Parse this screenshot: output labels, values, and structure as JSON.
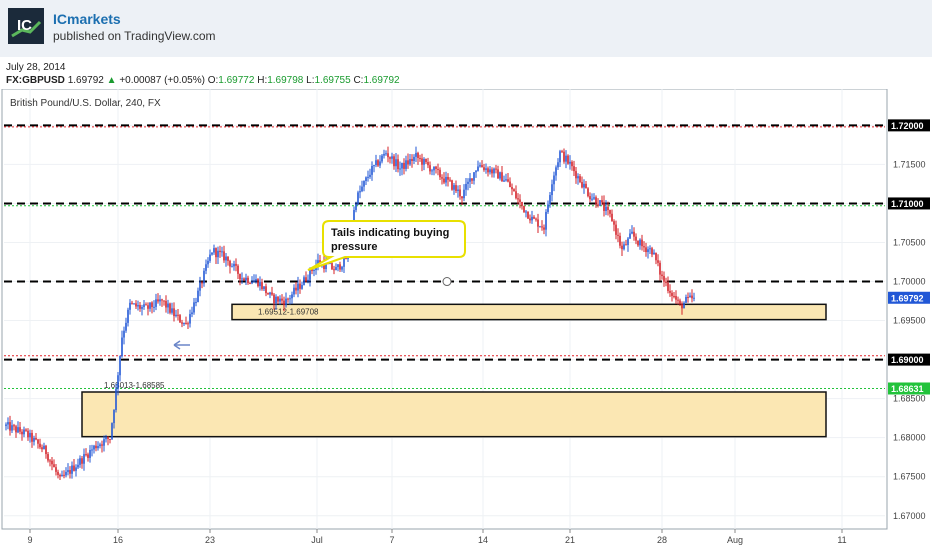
{
  "header": {
    "author": "ICmarkets",
    "published": "published on TradingView.com",
    "logo_text": "IC"
  },
  "date": "July 28, 2014",
  "ticker": {
    "symbol": "FX:GBPUSD",
    "last": "1.69792",
    "change": "+0.00087 (+0.05%)",
    "open_label": "O:",
    "open": "1.69772",
    "high_label": "H:",
    "high": "1.69798",
    "low_label": "L:",
    "low": "1.69755",
    "close_label": "C:",
    "close": "1.69792"
  },
  "colors": {
    "up": "#2157d6",
    "down": "#d42027",
    "zone_fill": "#fbe7b3",
    "callout_border": "#e8e000",
    "green_line": "#22c33b",
    "red_line": "#e0242a"
  },
  "chart_data": {
    "type": "candlestick",
    "title": "British Pound/U.S. Dollar, 240, FX",
    "x_ticks": [
      "9",
      "16",
      "23",
      "Jul",
      "7",
      "14",
      "21",
      "28",
      "Aug",
      "11"
    ],
    "y_ticks": [
      "1.72000",
      "1.71500",
      "1.71000",
      "1.70500",
      "1.70000",
      "1.69500",
      "1.69000",
      "1.68500",
      "1.68000",
      "1.67500",
      "1.67000"
    ],
    "ylim": [
      1.6692,
      1.7212
    ],
    "price_label": "1.69792",
    "partial_labels": [
      "1.69000",
      "1.68631"
    ],
    "levels": [
      {
        "price": 1.72,
        "style": "black-dashed"
      },
      {
        "price": 1.7198,
        "style": "red-dotted"
      },
      {
        "price": 1.71,
        "style": "black-dashed"
      },
      {
        "price": 1.7097,
        "style": "green-dotted"
      },
      {
        "price": 1.7,
        "style": "black-dashed"
      },
      {
        "price": 1.6905,
        "style": "red-dotted"
      },
      {
        "price": 1.69,
        "style": "black-dashed"
      },
      {
        "price": 1.6863,
        "style": "green-dotted"
      }
    ],
    "zones": [
      {
        "label": "1.69512-1.69708",
        "low": 1.69512,
        "high": 1.69708
      },
      {
        "label": "1.68013-1.68585",
        "low": 1.68013,
        "high": 1.68585
      }
    ],
    "annotation": "Tails indicating buying pressure",
    "close_last": 1.69792,
    "anchors": [
      [
        0,
        1.6815
      ],
      [
        10,
        1.6805
      ],
      [
        20,
        1.6782
      ],
      [
        27,
        1.6745
      ],
      [
        35,
        1.6765
      ],
      [
        45,
        1.679
      ],
      [
        52,
        1.68
      ],
      [
        55,
        1.686
      ],
      [
        58,
        1.693
      ],
      [
        62,
        1.697
      ],
      [
        70,
        1.6965
      ],
      [
        78,
        1.6975
      ],
      [
        85,
        1.6955
      ],
      [
        90,
        1.6945
      ],
      [
        96,
        1.6985
      ],
      [
        103,
        1.704
      ],
      [
        110,
        1.703
      ],
      [
        118,
        1.7005
      ],
      [
        126,
        1.7
      ],
      [
        133,
        1.6978
      ],
      [
        140,
        1.6975
      ],
      [
        148,
        1.6998
      ],
      [
        156,
        1.7025
      ],
      [
        165,
        1.7015
      ],
      [
        170,
        1.703
      ],
      [
        175,
        1.7105
      ],
      [
        182,
        1.714
      ],
      [
        190,
        1.7165
      ],
      [
        197,
        1.7145
      ],
      [
        205,
        1.716
      ],
      [
        215,
        1.714
      ],
      [
        222,
        1.7125
      ],
      [
        228,
        1.711
      ],
      [
        236,
        1.715
      ],
      [
        244,
        1.714
      ],
      [
        250,
        1.713
      ],
      [
        257,
        1.71
      ],
      [
        263,
        1.708
      ],
      [
        269,
        1.707
      ],
      [
        273,
        1.713
      ],
      [
        277,
        1.7165
      ],
      [
        282,
        1.715
      ],
      [
        287,
        1.713
      ],
      [
        292,
        1.711
      ],
      [
        297,
        1.71
      ],
      [
        303,
        1.708
      ],
      [
        308,
        1.704
      ],
      [
        313,
        1.706
      ],
      [
        318,
        1.7045
      ],
      [
        323,
        1.704
      ],
      [
        328,
        1.7005
      ],
      [
        333,
        1.6985
      ],
      [
        337,
        1.6968
      ],
      [
        340,
        1.6975
      ],
      [
        344,
        1.6979
      ]
    ]
  }
}
